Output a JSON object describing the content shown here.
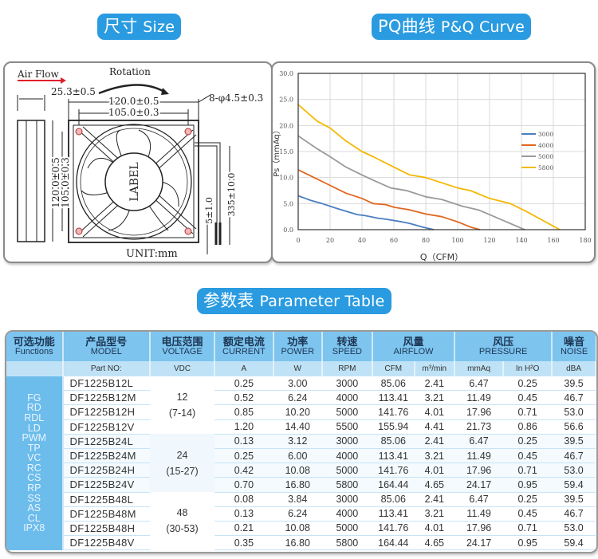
{
  "sections": {
    "size": {
      "zh": "尺寸",
      "en": "Size"
    },
    "curve": {
      "zh": "PQ曲线",
      "en": "P&Q Curve"
    },
    "table": {
      "zh": "参数表",
      "en": "Parameter Table"
    }
  },
  "drawing": {
    "air_flow": "Air Flow",
    "rotation": "Rotation",
    "depth": "25.3±0.5",
    "width_outer": "120.0±0.5",
    "width_inner": "105.0±0.3",
    "holes": "8-φ4.5±0.3",
    "height_outer": "120.0±0.5",
    "height_inner": "105.0±0.3",
    "label": "LABEL",
    "lead_strip": "5±1.0",
    "lead_length": "335±10.0",
    "unit": "UNIT:mm"
  },
  "chart_data": {
    "type": "line",
    "title": "",
    "xlabel": "Q（CFM）",
    "ylabel": "Ps（mmAq）",
    "xlim": [
      0,
      180
    ],
    "ylim": [
      0,
      30
    ],
    "xticks": [
      "0",
      "20",
      "40",
      "60",
      "80",
      "100",
      "120",
      "140",
      "160",
      "180"
    ],
    "yticks": [
      "0.0",
      "5.0",
      "10.0",
      "15.0",
      "20.0",
      "25.0",
      "30.0"
    ],
    "grid": true,
    "legend_position": "right",
    "series": [
      {
        "name": "3000",
        "color": "#4a7fc1",
        "x": [
          0,
          8,
          15,
          25,
          37,
          42,
          50,
          55,
          65,
          70,
          78,
          85
        ],
        "y": [
          6.5,
          5.6,
          5.0,
          4.0,
          2.9,
          2.7,
          2.2,
          2.0,
          1.5,
          1.2,
          0.5,
          0
        ]
      },
      {
        "name": "4000",
        "color": "#e0661f",
        "x": [
          0,
          10,
          20,
          30,
          40,
          47,
          55,
          60,
          70,
          80,
          90,
          100,
          108,
          114
        ],
        "y": [
          11.5,
          10.0,
          8.5,
          7.0,
          6.0,
          5.0,
          4.8,
          4.3,
          3.8,
          3.0,
          2.5,
          1.5,
          0.5,
          0
        ]
      },
      {
        "name": "5000",
        "color": "#9a9a9a",
        "x": [
          0,
          12,
          20,
          30,
          40,
          47,
          58,
          68,
          80,
          90,
          103,
          113,
          123,
          142
        ],
        "y": [
          18.0,
          15.5,
          14.0,
          12.0,
          10.5,
          9.5,
          8.0,
          7.5,
          6.3,
          5.8,
          4.5,
          3.8,
          2.5,
          0
        ]
      },
      {
        "name": "5800",
        "color": "#f5b800",
        "x": [
          0,
          12,
          20,
          30,
          40,
          47,
          60,
          70,
          80,
          90,
          100,
          108,
          120,
          133,
          143,
          164
        ],
        "y": [
          24.0,
          20.8,
          19.5,
          17.0,
          15.0,
          14.0,
          12.0,
          10.5,
          10.0,
          9.0,
          8.0,
          7.5,
          6.0,
          5.0,
          3.5,
          0
        ]
      }
    ]
  },
  "table": {
    "headers": [
      {
        "zh": "可选功能",
        "en": "Functions"
      },
      {
        "zh": "产品型号",
        "en": "MODEL"
      },
      {
        "zh": "电压范围",
        "en": "VOLTAGE"
      },
      {
        "zh": "额定电流",
        "en": "CURRENT"
      },
      {
        "zh": "功率",
        "en": "POWER"
      },
      {
        "zh": "转速",
        "en": "SPEED"
      },
      {
        "zh": "风量",
        "en": "AIRFLOW"
      },
      {
        "zh": "风压",
        "en": "PRESSURE"
      },
      {
        "zh": "噪音",
        "en": "NOISE"
      }
    ],
    "units": [
      "",
      "Part NO:",
      "VDC",
      "A",
      "W",
      "RPM",
      "CFM",
      "m³/min",
      "mmAq",
      "In H²O",
      "dBA"
    ],
    "functions": "FG RD RDL LD PWM TP VC RC CS RP SS AS CL IPX8",
    "voltage_groups": [
      {
        "nominal": "12",
        "range": "(7-14)"
      },
      {
        "nominal": "24",
        "range": "(15-27)"
      },
      {
        "nominal": "48",
        "range": "(30-53)"
      }
    ],
    "rows": [
      [
        "DF1225B12L",
        "0.25",
        "3.00",
        "3000",
        "85.06",
        "2.41",
        "6.47",
        "0.25",
        "39.5"
      ],
      [
        "DF1225B12M",
        "0.52",
        "6.24",
        "4000",
        "113.41",
        "3.21",
        "11.49",
        "0.45",
        "46.7"
      ],
      [
        "DF1225B12H",
        "0.85",
        "10.20",
        "5000",
        "141.76",
        "4.01",
        "17.96",
        "0.71",
        "53.0"
      ],
      [
        "DF1225B12V",
        "1.20",
        "14.40",
        "5500",
        "155.94",
        "4.41",
        "21.73",
        "0.86",
        "56.6"
      ],
      [
        "DF1225B24L",
        "0.13",
        "3.12",
        "3000",
        "85.06",
        "2.41",
        "6.47",
        "0.25",
        "39.5"
      ],
      [
        "DF1225B24M",
        "0.25",
        "6.00",
        "4000",
        "113.41",
        "3.21",
        "11.49",
        "0.45",
        "46.7"
      ],
      [
        "DF1225B24H",
        "0.42",
        "10.08",
        "5000",
        "141.76",
        "4.01",
        "17.96",
        "0.71",
        "53.0"
      ],
      [
        "DF1225B24V",
        "0.70",
        "16.80",
        "5800",
        "164.44",
        "4.65",
        "24.17",
        "0.95",
        "59.4"
      ],
      [
        "DF1225B48L",
        "0.08",
        "3.84",
        "3000",
        "85.06",
        "2.41",
        "6.47",
        "0.25",
        "39.5"
      ],
      [
        "DF1225B48M",
        "0.13",
        "6.24",
        "4000",
        "113.41",
        "3.21",
        "11.49",
        "0.45",
        "46.7"
      ],
      [
        "DF1225B48H",
        "0.21",
        "10.08",
        "5000",
        "141.76",
        "4.01",
        "17.96",
        "0.71",
        "53.0"
      ],
      [
        "DF1225B48V",
        "0.35",
        "16.80",
        "5800",
        "164.44",
        "4.65",
        "24.17",
        "0.95",
        "59.4"
      ]
    ]
  }
}
